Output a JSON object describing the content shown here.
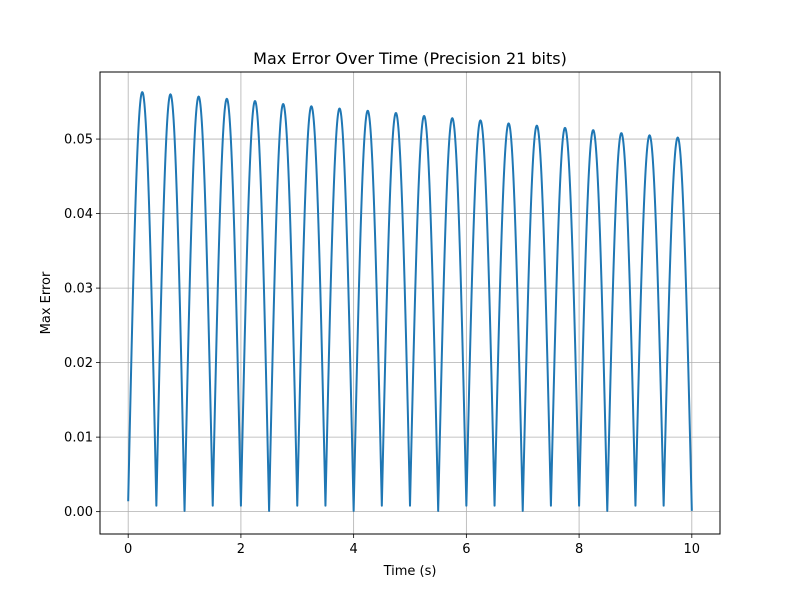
{
  "chart_data": {
    "type": "line",
    "title": "Max Error Over Time (Precision 21 bits)",
    "xlabel": "Time (s)",
    "ylabel": "Max Error",
    "xlim": [
      -0.5,
      10.5
    ],
    "ylim": [
      -0.003,
      0.059
    ],
    "x_ticks": [
      0,
      2,
      4,
      6,
      8,
      10
    ],
    "x_tick_labels": [
      "0",
      "2",
      "4",
      "6",
      "8",
      "10"
    ],
    "y_ticks": [
      0.0,
      0.01,
      0.02,
      0.03,
      0.04,
      0.05
    ],
    "y_tick_labels": [
      "0.00",
      "0.01",
      "0.02",
      "0.03",
      "0.04",
      "0.05"
    ],
    "grid": true,
    "legend": "none",
    "series": [
      {
        "color": "#1f77b4",
        "x": [
          0,
          0.25,
          0.5,
          0.75,
          1.0,
          1.25,
          1.5,
          1.75,
          2.0,
          2.25,
          2.5,
          2.75,
          3.0,
          3.25,
          3.5,
          3.75,
          4.0,
          4.25,
          4.5,
          4.75,
          5.0,
          5.25,
          5.5,
          5.75,
          6.0,
          6.25,
          6.5,
          6.75,
          7.0,
          7.25,
          7.5,
          7.75,
          8.0,
          8.25,
          8.5,
          8.75,
          9.0,
          9.25,
          9.5,
          9.75,
          10.0
        ],
        "values": [
          0.0014,
          0.0563,
          0.0008,
          0.056,
          0.0001,
          0.0557,
          0.0008,
          0.0554,
          0.0008,
          0.0551,
          0.0001,
          0.0547,
          0.0008,
          0.0544,
          0.0008,
          0.0541,
          0.0001,
          0.0538,
          0.0008,
          0.0535,
          0.0008,
          0.0531,
          0.0001,
          0.0528,
          0.0008,
          0.0525,
          0.0008,
          0.0521,
          0.0001,
          0.0518,
          0.0008,
          0.0515,
          0.0008,
          0.0512,
          0.0001,
          0.0508,
          0.0008,
          0.0505,
          0.0008,
          0.0502,
          0.0001
        ]
      }
    ]
  }
}
